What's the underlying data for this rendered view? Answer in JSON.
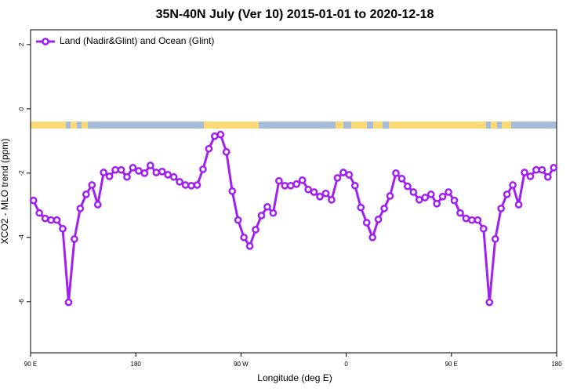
{
  "chart_data": {
    "type": "line",
    "title": "35N-40N July (Ver 10)   2015-01-01 to 2020-12-18",
    "x_label": "Longitude (deg E)",
    "y_label": "XCO2 - MLO trend (ppm)",
    "xlim": [
      90,
      540
    ],
    "ylim": [
      -7.59,
      2.46
    ],
    "xticks": [
      {
        "value": 90,
        "label": "90 E"
      },
      180,
      {
        "value": 270,
        "label": "90 W"
      },
      {
        "value": 360,
        "label": "0"
      },
      {
        "value": 450,
        "label": "90 E"
      },
      {
        "value": 540,
        "label": "180"
      }
    ],
    "yticks": [
      2,
      0,
      -2,
      -4,
      -6
    ],
    "legend_position": "top-left",
    "series": [
      {
        "name": "Land (Nadir&Glint) and Ocean (Glint)",
        "color": "#a020f0",
        "x": [
          92.5,
          97.5,
          102.5,
          107.5,
          112.5,
          117.5,
          122.5,
          127.5,
          132.5,
          137.5,
          142.5,
          147.5,
          152.5,
          157.5,
          162.5,
          167.5,
          172.5,
          177.5,
          182.5,
          187.5,
          192.5,
          197.5,
          202.5,
          207.5,
          212.5,
          217.5,
          222.5,
          227.5,
          232.5,
          237.5,
          242.5,
          247.5,
          252.5,
          257.5,
          262.5,
          267.5,
          272.5,
          277.5,
          282.5,
          287.5,
          292.5,
          297.5,
          302.5,
          307.5,
          312.5,
          317.5,
          322.5,
          327.5,
          332.5,
          337.5,
          342.5,
          347.5,
          352.5,
          357.5,
          362.5,
          367.5,
          372.5,
          377.5,
          382.5,
          387.5,
          392.5,
          397.5,
          402.5,
          407.5,
          412.5,
          417.5,
          422.5,
          427.5,
          432.5,
          437.5,
          442.5,
          447.5,
          452.5,
          457.5,
          462.5,
          467.5,
          472.5,
          477.5,
          482.5,
          487.5,
          492.5,
          497.5,
          502.5,
          507.5,
          512.5,
          517.5,
          522.5,
          527.5,
          532.5,
          537.5
        ],
        "values": [
          -2.85,
          -3.24,
          -3.41,
          -3.46,
          -3.46,
          -3.73,
          -6.02,
          -4.05,
          -3.1,
          -2.66,
          -2.37,
          -2.98,
          -1.98,
          -2.1,
          -1.9,
          -1.9,
          -2.12,
          -1.83,
          -1.93,
          -2.0,
          -1.76,
          -1.98,
          -1.95,
          -2.05,
          -2.12,
          -2.27,
          -2.37,
          -2.39,
          -2.37,
          -1.88,
          -1.24,
          -0.85,
          -0.8,
          -1.34,
          -2.56,
          -3.46,
          -4.0,
          -4.27,
          -3.76,
          -3.32,
          -3.05,
          -3.24,
          -2.24,
          -2.39,
          -2.39,
          -2.34,
          -2.22,
          -2.51,
          -2.59,
          -2.73,
          -2.63,
          -2.83,
          -2.15,
          -1.98,
          -2.05,
          -2.39,
          -3.07,
          -3.54,
          -4.0,
          -3.44,
          -3.1,
          -2.71,
          -2.0,
          -2.17,
          -2.41,
          -2.59,
          -2.83,
          -2.76,
          -2.66,
          -2.95,
          -2.73,
          -2.59,
          -2.85,
          -3.24,
          -3.41,
          -3.46,
          -3.46,
          -3.73,
          -6.02,
          -4.05,
          -3.1,
          -2.66,
          -2.37,
          -2.98,
          -1.98,
          -2.1,
          -1.9,
          -1.9,
          -2.12,
          -1.83
        ]
      }
    ]
  }
}
